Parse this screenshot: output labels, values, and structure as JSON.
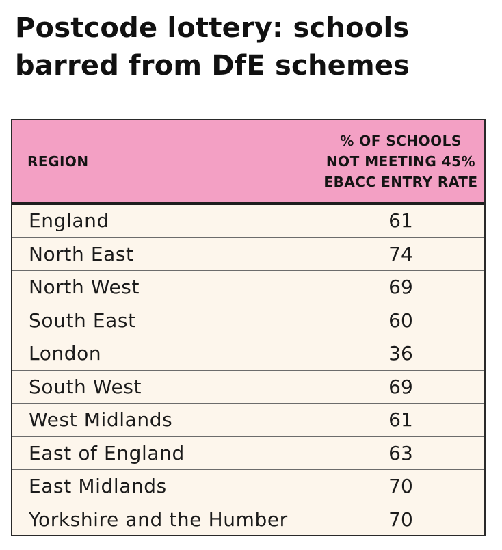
{
  "title": "Postcode lottery: schools barred from DfE schemes",
  "colors": {
    "header_bg": "#f3a0c4",
    "body_bg": "#fdf6ec",
    "border": "#2a2a2a"
  },
  "chart_data": {
    "type": "table",
    "title": "Postcode lottery: schools barred from DfE schemes",
    "columns": [
      "REGION",
      "% OF SCHOOLS NOT MEETING 45% EBACC ENTRY RATE"
    ],
    "rows": [
      {
        "region": "England",
        "value": 61
      },
      {
        "region": "North East",
        "value": 74
      },
      {
        "region": "North West",
        "value": 69
      },
      {
        "region": "South East",
        "value": 60
      },
      {
        "region": "London",
        "value": 36
      },
      {
        "region": "South West",
        "value": 69
      },
      {
        "region": "West Midlands",
        "value": 61
      },
      {
        "region": "East of England",
        "value": 63
      },
      {
        "region": "East Midlands",
        "value": 70
      },
      {
        "region": "Yorkshire and the Humber",
        "value": 70
      }
    ]
  }
}
